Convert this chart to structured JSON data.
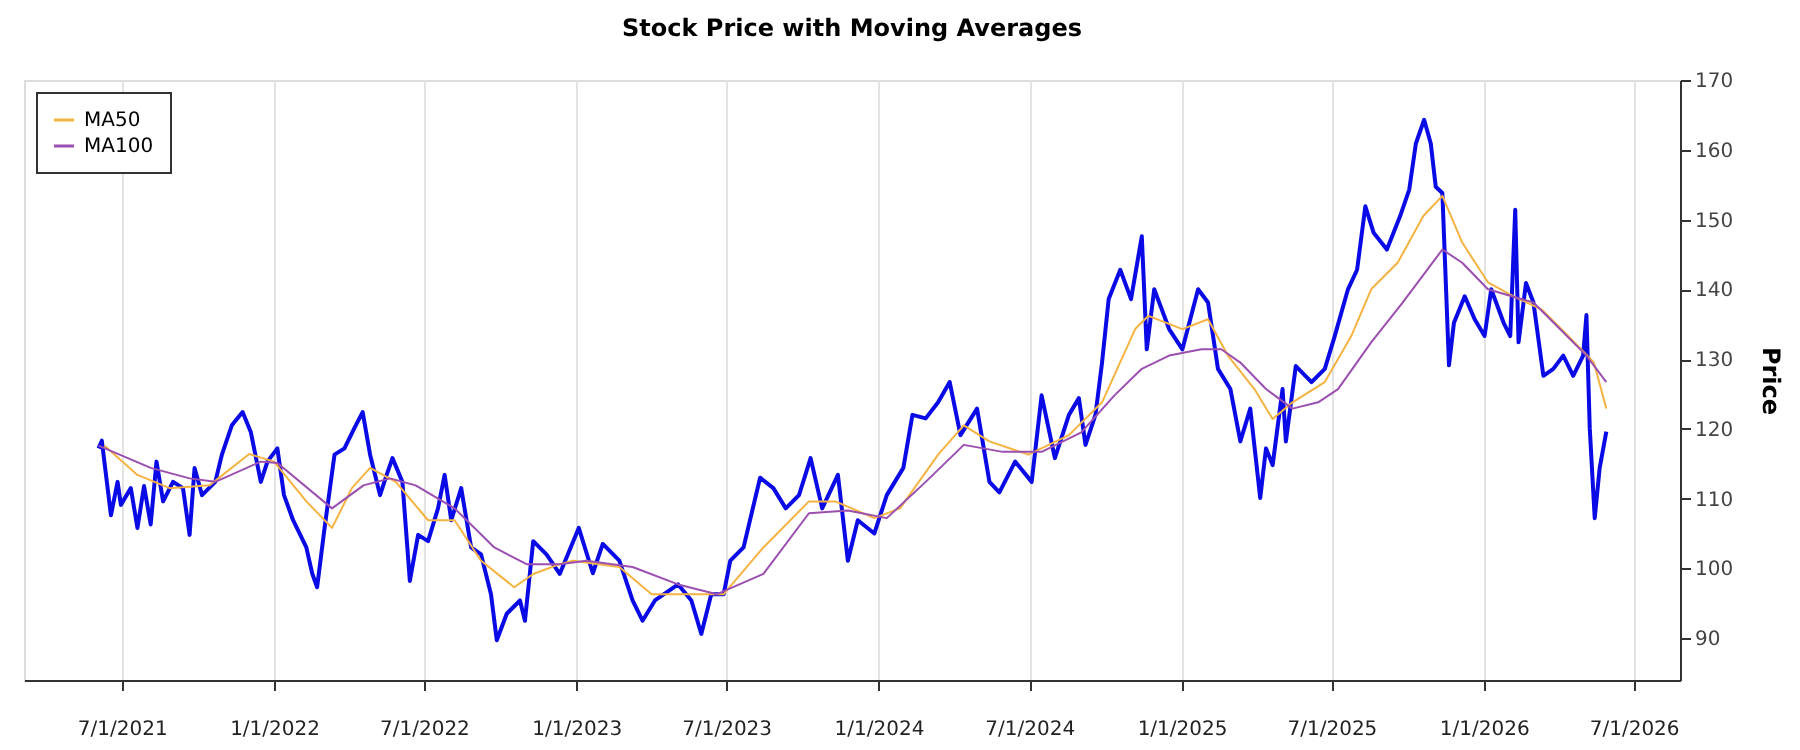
{
  "chart_data": {
    "type": "line",
    "title": "Stock Price with Moving Averages",
    "ylabel": "Price",
    "xlim": [
      "2021-03-05",
      "2026-08-26"
    ],
    "ylim": [
      84,
      170
    ],
    "xticks": [
      {
        "value": "2021-07-01",
        "label": "7/1/2021"
      },
      {
        "value": "2022-01-01",
        "label": "1/1/2022"
      },
      {
        "value": "2022-07-01",
        "label": "7/1/2022"
      },
      {
        "value": "2023-01-01",
        "label": "1/1/2023"
      },
      {
        "value": "2023-07-01",
        "label": "7/1/2023"
      },
      {
        "value": "2024-01-01",
        "label": "1/1/2024"
      },
      {
        "value": "2024-07-01",
        "label": "7/1/2024"
      },
      {
        "value": "2025-01-01",
        "label": "1/1/2025"
      },
      {
        "value": "2025-07-01",
        "label": "7/1/2025"
      },
      {
        "value": "2026-01-01",
        "label": "1/1/2026"
      },
      {
        "value": "2026-07-01",
        "label": "7/1/2026"
      }
    ],
    "yticks": [
      90,
      100,
      110,
      120,
      130,
      140,
      150,
      160,
      170
    ],
    "grid": "x",
    "legend": "top left",
    "series": [
      {
        "color": "#0a0ae6",
        "x": [
          "2021-06-03",
          "2021-06-07",
          "2021-06-18",
          "2021-06-26",
          "2021-06-30",
          "2021-07-12",
          "2021-07-20",
          "2021-07-28",
          "2021-08-05",
          "2021-08-12",
          "2021-08-20",
          "2021-09-01",
          "2021-09-13",
          "2021-09-21",
          "2021-09-27",
          "2021-10-06",
          "2021-10-22",
          "2021-10-30",
          "2021-11-11",
          "2021-11-24",
          "2021-12-04",
          "2021-12-16",
          "2021-12-24",
          "2022-01-05",
          "2022-01-13",
          "2022-01-24",
          "2022-02-09",
          "2022-02-16",
          "2022-02-22",
          "2022-03-03",
          "2022-03-15",
          "2022-03-27",
          "2022-04-08",
          "2022-04-18",
          "2022-04-27",
          "2022-05-09",
          "2022-05-17",
          "2022-05-24",
          "2022-06-05",
          "2022-06-14",
          "2022-06-24",
          "2022-07-06",
          "2022-07-18",
          "2022-07-26",
          "2022-08-03",
          "2022-08-15",
          "2022-08-27",
          "2022-09-08",
          "2022-09-20",
          "2022-09-27",
          "2022-10-09",
          "2022-10-25",
          "2022-10-31",
          "2022-11-10",
          "2022-11-26",
          "2022-12-12",
          "2023-01-04",
          "2023-01-21",
          "2023-02-02",
          "2023-02-22",
          "2023-03-10",
          "2023-03-22",
          "2023-04-06",
          "2023-05-04",
          "2023-05-20",
          "2023-06-01",
          "2023-06-13",
          "2023-06-28",
          "2023-07-06",
          "2023-07-22",
          "2023-08-11",
          "2023-08-27",
          "2023-09-11",
          "2023-09-27",
          "2023-10-11",
          "2023-10-25",
          "2023-11-13",
          "2023-11-25",
          "2023-12-07",
          "2023-12-27",
          "2024-01-11",
          "2024-01-31",
          "2024-02-11",
          "2024-02-27",
          "2024-03-13",
          "2024-03-27",
          "2024-04-09",
          "2024-04-29",
          "2024-05-14",
          "2024-05-26",
          "2024-06-14",
          "2024-07-04",
          "2024-07-16",
          "2024-08-01",
          "2024-08-18",
          "2024-08-30",
          "2024-09-07",
          "2024-09-19",
          "2024-09-27",
          "2024-10-05",
          "2024-10-19",
          "2024-11-01",
          "2024-11-14",
          "2024-11-20",
          "2024-11-29",
          "2024-12-17",
          "2025-01-02",
          "2025-01-21",
          "2025-02-02",
          "2025-02-14",
          "2025-03-01",
          "2025-03-13",
          "2025-03-25",
          "2025-04-06",
          "2025-04-13",
          "2025-04-21",
          "2025-05-03",
          "2025-05-07",
          "2025-05-19",
          "2025-06-07",
          "2025-06-23",
          "2025-07-05",
          "2025-07-21",
          "2025-08-01",
          "2025-08-11",
          "2025-08-21",
          "2025-09-06",
          "2025-09-22",
          "2025-10-03",
          "2025-10-11",
          "2025-10-21",
          "2025-10-29",
          "2025-11-04",
          "2025-11-12",
          "2025-11-20",
          "2025-11-26",
          "2025-12-09",
          "2025-12-21",
          "2026-01-02",
          "2026-01-10",
          "2026-01-25",
          "2026-02-02",
          "2026-02-08",
          "2026-02-12",
          "2026-02-21",
          "2026-03-02",
          "2026-03-14",
          "2026-03-26",
          "2026-04-07",
          "2026-04-19",
          "2026-05-01",
          "2026-05-05",
          "2026-05-09",
          "2026-05-15",
          "2026-05-21",
          "2026-05-29"
        ],
        "values": [
          117.2,
          118.3,
          107.6,
          112.4,
          109.1,
          111.5,
          105.8,
          111.8,
          106.3,
          115.3,
          109.6,
          112.4,
          111.5,
          104.8,
          114.4,
          110.5,
          112.4,
          116.3,
          120.5,
          122.4,
          119.5,
          112.4,
          115.3,
          117.2,
          110.5,
          106.9,
          103.0,
          99.3,
          97.3,
          105.8,
          116.3,
          117.2,
          120.1,
          122.4,
          116.3,
          110.5,
          113.4,
          115.8,
          112.4,
          98.2,
          104.8,
          103.9,
          108.6,
          113.4,
          106.9,
          111.5,
          103.0,
          102.0,
          96.3,
          89.7,
          93.5,
          95.4,
          92.5,
          103.9,
          102.0,
          99.2,
          105.8,
          99.3,
          103.5,
          101.1,
          95.4,
          92.5,
          95.4,
          97.7,
          95.4,
          90.6,
          96.3,
          96.3,
          101.1,
          103.0,
          113.0,
          111.5,
          108.6,
          110.5,
          115.8,
          108.6,
          113.4,
          101.1,
          106.9,
          105.0,
          110.5,
          114.4,
          122.0,
          121.5,
          123.8,
          126.7,
          119.1,
          122.9,
          112.4,
          110.9,
          115.3,
          112.4,
          124.8,
          115.8,
          122.0,
          124.4,
          117.7,
          122.0,
          129.5,
          138.6,
          142.8,
          138.6,
          147.6,
          131.4,
          140.0,
          134.3,
          131.4,
          140.0,
          138.1,
          128.6,
          125.7,
          118.2,
          122.9,
          110.1,
          117.2,
          114.8,
          125.7,
          118.2,
          129.0,
          126.7,
          128.6,
          133.3,
          140.0,
          142.8,
          151.9,
          148.1,
          145.7,
          150.5,
          154.3,
          160.9,
          164.3,
          160.9,
          154.7,
          153.8,
          129.1,
          135.2,
          139.0,
          135.7,
          133.3,
          140.0,
          135.2,
          133.3,
          151.4,
          132.4,
          140.9,
          138.1,
          127.6,
          128.6,
          130.5,
          127.6,
          130.5,
          136.3,
          120.1,
          107.2,
          114.4,
          119.6
        ]
      },
      {
        "name": "MA50",
        "color": "#f5b342",
        "x": [
          "2021-06-10",
          "2021-07-20",
          "2021-08-28",
          "2021-10-15",
          "2021-12-02",
          "2022-01-01",
          "2022-02-09",
          "2022-03-12",
          "2022-04-05",
          "2022-04-27",
          "2022-05-28",
          "2022-07-06",
          "2022-08-07",
          "2022-09-08",
          "2022-10-18",
          "2022-11-10",
          "2022-12-12",
          "2022-12-28",
          "2023-02-22",
          "2023-04-02",
          "2023-05-20",
          "2023-06-28",
          "2023-08-15",
          "2023-10-09",
          "2023-11-10",
          "2023-12-27",
          "2024-01-27",
          "2024-03-13",
          "2024-04-13",
          "2024-05-14",
          "2024-06-30",
          "2024-08-18",
          "2024-09-27",
          "2024-11-06",
          "2024-11-22",
          "2025-01-02",
          "2025-02-02",
          "2025-02-26",
          "2025-03-30",
          "2025-04-21",
          "2025-05-15",
          "2025-06-23",
          "2025-07-25",
          "2025-08-18",
          "2025-09-19",
          "2025-10-20",
          "2025-11-12",
          "2025-12-06",
          "2026-01-06",
          "2026-02-06",
          "2026-03-12",
          "2026-04-13",
          "2026-05-14",
          "2026-05-29"
        ],
        "values": [
          117.6,
          113.4,
          111.5,
          111.9,
          116.4,
          115.3,
          109.6,
          105.8,
          111.5,
          114.4,
          112.4,
          106.9,
          106.9,
          101.1,
          97.3,
          99.2,
          100.6,
          101.1,
          100.2,
          96.3,
          96.3,
          96.3,
          103.0,
          109.6,
          109.6,
          107.2,
          108.6,
          116.3,
          120.5,
          118.2,
          116.3,
          119.1,
          123.8,
          134.3,
          136.2,
          134.3,
          135.7,
          130.5,
          125.7,
          121.4,
          123.8,
          126.7,
          133.3,
          140.0,
          143.8,
          150.5,
          153.4,
          146.7,
          141.0,
          139.0,
          137.1,
          133.3,
          129.5,
          122.9
        ]
      },
      {
        "name": "MA100",
        "color": "#9b4fb0",
        "x": [
          "2021-06-03",
          "2021-08-05",
          "2021-09-21",
          "2021-10-22",
          "2021-12-16",
          "2022-01-05",
          "2022-03-12",
          "2022-04-19",
          "2022-05-21",
          "2022-06-21",
          "2022-08-07",
          "2022-09-24",
          "2022-11-02",
          "2022-12-12",
          "2023-01-13",
          "2023-03-10",
          "2023-05-04",
          "2023-06-20",
          "2023-08-15",
          "2023-10-09",
          "2023-11-25",
          "2024-01-11",
          "2024-02-27",
          "2024-04-13",
          "2024-05-30",
          "2024-07-16",
          "2024-09-02",
          "2024-10-12",
          "2024-11-14",
          "2024-12-17",
          "2025-01-25",
          "2025-02-18",
          "2025-03-13",
          "2025-04-13",
          "2025-05-15",
          "2025-06-15",
          "2025-07-09",
          "2025-08-18",
          "2025-09-25",
          "2025-11-12",
          "2025-12-06",
          "2026-01-06",
          "2026-03-02",
          "2026-04-03",
          "2026-05-05",
          "2026-05-29"
        ],
        "values": [
          117.6,
          114.4,
          112.9,
          112.4,
          115.3,
          115.1,
          108.6,
          111.9,
          112.9,
          111.9,
          108.6,
          103.0,
          100.6,
          100.6,
          101.1,
          100.2,
          97.7,
          96.3,
          99.2,
          107.9,
          108.3,
          107.2,
          112.4,
          117.7,
          116.7,
          116.7,
          119.5,
          124.8,
          128.6,
          130.5,
          131.4,
          131.4,
          129.5,
          125.7,
          122.9,
          123.8,
          125.7,
          132.4,
          138.1,
          145.7,
          143.8,
          140.0,
          138.1,
          134.3,
          130.5,
          126.7
        ]
      }
    ]
  }
}
